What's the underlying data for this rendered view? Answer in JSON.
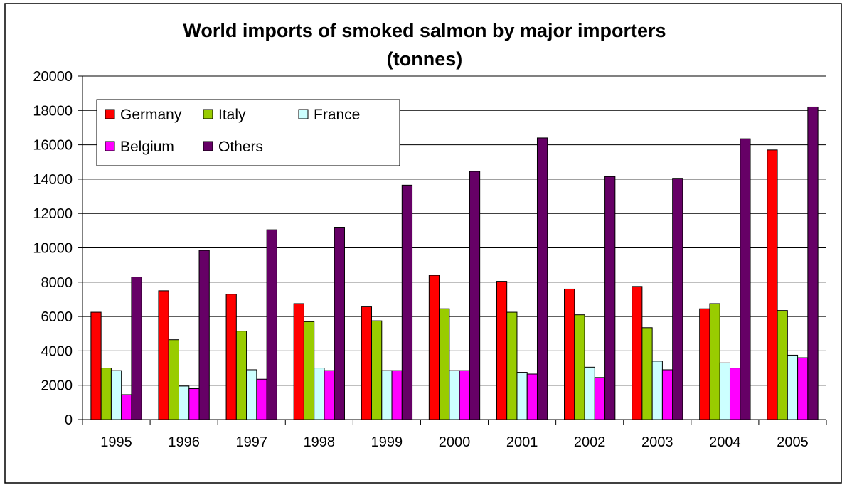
{
  "chart_data": {
    "type": "bar",
    "title": "World imports of smoked salmon by major importers",
    "subtitle": "(tonnes)",
    "xlabel": "",
    "ylabel": "",
    "ylim": [
      0,
      20000
    ],
    "yticks": [
      "0",
      "2000",
      "4000",
      "6000",
      "8000",
      "10000",
      "12000",
      "14000",
      "16000",
      "18000",
      "20000"
    ],
    "grid": true,
    "legend_position": "top-left",
    "categories": [
      "1995",
      "1996",
      "1997",
      "1998",
      "1999",
      "2000",
      "2001",
      "2002",
      "2003",
      "2004",
      "2005"
    ],
    "series": [
      {
        "name": "Germany",
        "color": "#ff0000",
        "values": [
          6250,
          7500,
          7300,
          6750,
          6600,
          8400,
          8050,
          7600,
          7750,
          6450,
          15700
        ]
      },
      {
        "name": "Italy",
        "color": "#99cc00",
        "values": [
          3000,
          4650,
          5150,
          5700,
          5750,
          6450,
          6250,
          6100,
          5350,
          6750,
          6350
        ]
      },
      {
        "name": "France",
        "color": "#ccffff",
        "values": [
          2850,
          1950,
          2900,
          3000,
          2850,
          2850,
          2750,
          3050,
          3400,
          3300,
          3750
        ]
      },
      {
        "name": "Belgium",
        "color": "#ff00ff",
        "values": [
          1450,
          1800,
          2350,
          2850,
          2850,
          2850,
          2650,
          2450,
          2900,
          3000,
          3600
        ]
      },
      {
        "name": "Others",
        "color": "#660066",
        "values": [
          8300,
          9850,
          11050,
          11200,
          13650,
          14450,
          16400,
          14150,
          14050,
          16350,
          18200
        ]
      }
    ]
  }
}
